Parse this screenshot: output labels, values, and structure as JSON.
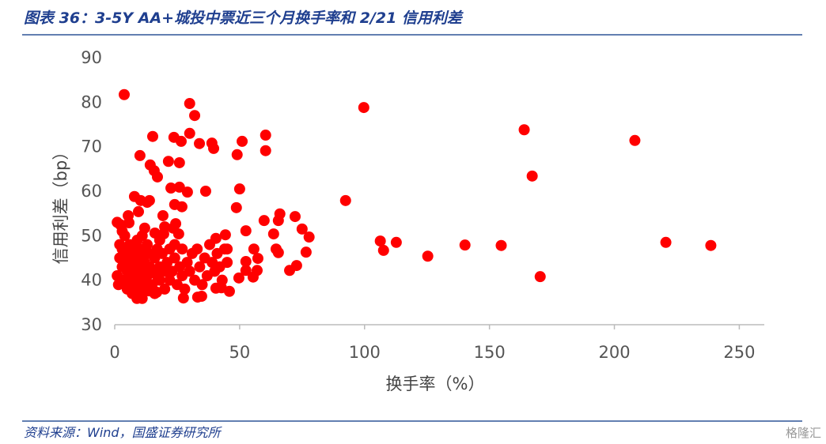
{
  "title": "图表 36：3-5Y AA+城投中票近三个月换手率和 2/21 信用利差",
  "source": "资料来源：Wind，国盛证券研究所",
  "watermark": "格隆汇",
  "chart_data": {
    "type": "scatter",
    "x_label": "换手率（%）",
    "y_label": "信用利差（bp）",
    "color": "#ff0000",
    "xlim": [
      0,
      260
    ],
    "xticks": [
      0,
      50,
      100,
      150,
      200,
      250
    ],
    "ylim": [
      30,
      90
    ],
    "yticks": [
      30,
      40,
      50,
      60,
      70,
      80,
      90
    ],
    "x": [
      3.8,
      30,
      32,
      15.2,
      23.7,
      30,
      26.6,
      33.9,
      38.9,
      39.6,
      51,
      60.4,
      60.4,
      49,
      10.1,
      14.2,
      15.8,
      17.1,
      21.5,
      25.9,
      22.5,
      25.9,
      29.1,
      36.4,
      50,
      7.9,
      10.4,
      13,
      13.9,
      24,
      26.9,
      48.7,
      5.4,
      9.5,
      2.2,
      5.7,
      19.3,
      24.4,
      23.4,
      12,
      16.1,
      19.6,
      25.6,
      44.3,
      40.5,
      52.5,
      59.8,
      66.1,
      65.5,
      72.2,
      75,
      77.8,
      63.6,
      64.6,
      65.5,
      76.6,
      55.7,
      57.3,
      72.8,
      70,
      52.5,
      52.5,
      49.7,
      55.4,
      57,
      45,
      92.4,
      99.7,
      106.3,
      107.6,
      112.7,
      125.3,
      140.2,
      154.7,
      163.9,
      167.1,
      170.3,
      208.2,
      220.6,
      238.6,
      8.9,
      11,
      27.5,
      33.2,
      34.8,
      40.5,
      45.9,
      42.7,
      16.8,
      13.6,
      1,
      1.5,
      2,
      2,
      3,
      3,
      3.5,
      4,
      4,
      5,
      5,
      5,
      6,
      6,
      6.5,
      7,
      7,
      7,
      8,
      8,
      8,
      9,
      9,
      9,
      10,
      10,
      10,
      11,
      11,
      11,
      12,
      12,
      12,
      13,
      13,
      14,
      14,
      15,
      15,
      16,
      16,
      17,
      17,
      18,
      18,
      19,
      20,
      20,
      21,
      22,
      22,
      23,
      24,
      24,
      25,
      26,
      27,
      27,
      28,
      29,
      30,
      31,
      32,
      33,
      34,
      35,
      36,
      37,
      38,
      39,
      40,
      41,
      42,
      43,
      44,
      45,
      20,
      18,
      3,
      1
    ],
    "values": [
      81.7,
      79.7,
      77,
      72.3,
      72.1,
      73,
      71.2,
      70.7,
      70.8,
      69.6,
      71.2,
      72.6,
      69.1,
      68.2,
      68,
      65.9,
      64.6,
      63.2,
      66.7,
      66.4,
      60.7,
      60.9,
      59.8,
      60,
      60.5,
      58.8,
      57.9,
      57.5,
      57.9,
      57,
      56.5,
      56.3,
      54.5,
      55.4,
      52.5,
      52.9,
      54.5,
      52.7,
      51.7,
      51.7,
      50.6,
      50.4,
      50.4,
      50.2,
      49.4,
      51.1,
      53.4,
      54.9,
      53.4,
      54.3,
      51.5,
      49.7,
      50.4,
      47,
      46.2,
      46.3,
      47,
      44.9,
      43.3,
      42.2,
      44.2,
      42.2,
      40.5,
      40.7,
      42.2,
      47,
      57.9,
      78.8,
      48.8,
      46.7,
      48.5,
      45.4,
      47.9,
      47.8,
      73.8,
      63.4,
      40.8,
      71.4,
      48.5,
      47.8,
      35.9,
      35.9,
      36,
      36.2,
      36.4,
      38.2,
      37.5,
      38.3,
      37.3,
      37.6,
      41,
      39,
      45,
      48,
      43,
      47,
      40,
      50,
      44,
      38,
      42,
      46,
      48,
      40,
      44,
      37,
      41,
      47,
      43,
      39,
      45,
      49,
      41,
      37,
      44,
      47,
      39,
      42,
      46,
      50,
      38,
      40,
      44,
      41,
      48,
      43,
      46,
      39,
      42,
      45,
      37,
      41,
      47,
      40,
      43,
      46,
      38,
      42,
      44,
      47,
      40,
      42,
      48,
      45,
      39,
      43,
      47,
      41,
      38,
      44,
      42,
      46,
      40,
      47,
      43,
      39,
      45,
      41,
      48,
      44,
      42,
      46,
      43,
      40,
      47,
      44,
      52,
      49,
      51,
      53
    ]
  }
}
